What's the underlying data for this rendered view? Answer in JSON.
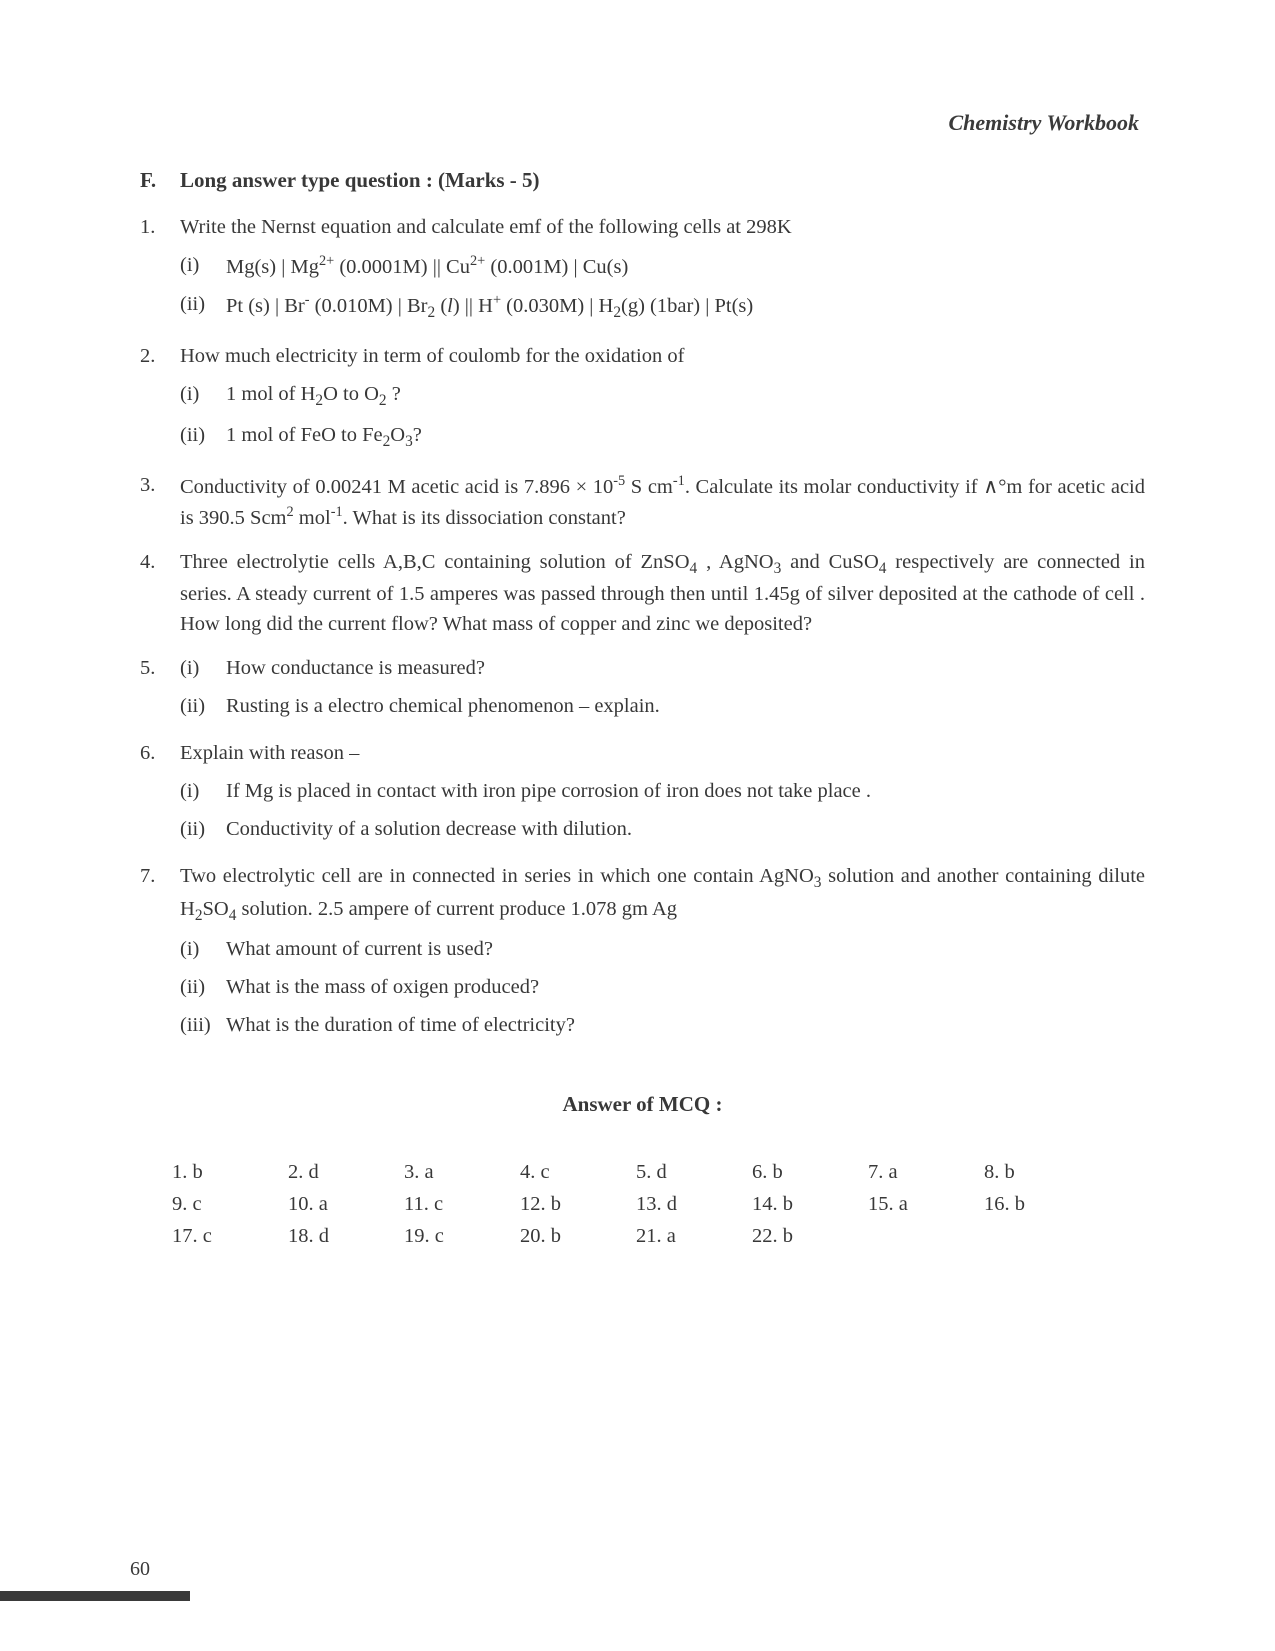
{
  "header": "Chemistry Workbook",
  "section": {
    "label": "F.",
    "title": "Long answer type question : (Marks - 5)"
  },
  "questions": [
    {
      "num": "1.",
      "text": "Write the Nernst equation and calculate emf of the following cells at 298K",
      "subs": [
        {
          "n": "(i)",
          "html": "Mg(s) | Mg<sup>2+</sup> (0.0001M) || Cu<sup>2+</sup> (0.001M) | Cu(s)"
        },
        {
          "n": "(ii)",
          "html": "Pt (s) | Br<sup>-</sup> (0.010M) | Br<sub class='ch'>2</sub> (<span class='it'>l</span>) || H<sup>+</sup> (0.030M) | H<sub class='ch'>2</sub>(g) (1bar) | Pt(s)"
        }
      ]
    },
    {
      "num": "2.",
      "text": "How much electricity in term of coulomb for the oxidation of",
      "subs": [
        {
          "n": "(i)",
          "html": "1 mol of H<sub class='ch'>2</sub>O to O<sub class='ch'>2</sub> ?"
        },
        {
          "n": "(ii)",
          "html": "1 mol of FeO to Fe<sub class='ch'>2</sub>O<sub class='ch'>3</sub>?"
        }
      ]
    },
    {
      "num": "3.",
      "html": "Conductivity of 0.00241 M acetic acid is 7.896 × 10<sup>-5</sup> S cm<sup>-1</sup>. Calculate its molar conductivity if ∧°m for acetic acid is 390.5 Scm<sup>2</sup> mol<sup>-1</sup>. What is its dissociation constant?"
    },
    {
      "num": "4.",
      "html": "Three electrolytie cells A,B,C containing solution of ZnSO<sub class='ch'>4</sub> , AgNO<sub class='ch'>3</sub> and CuSO<sub class='ch'>4</sub> respectively are connected in series. A steady current of 1.5 amperes was passed through then until 1.45g of silver deposited at the cathode of cell . How long did the current flow? What mass of copper and zinc we deposited?"
    },
    {
      "num": "5.",
      "subs_flush": true,
      "subs": [
        {
          "n": "(i)",
          "html": "How conductance is measured?"
        },
        {
          "n": "(ii)",
          "html": "Rusting is a electro chemical phenomenon – explain."
        }
      ]
    },
    {
      "num": "6.",
      "text": "Explain with reason –",
      "subs": [
        {
          "n": "(i)",
          "html": "If Mg is placed in contact with iron pipe corrosion of iron does not take place ."
        },
        {
          "n": "(ii)",
          "html": "Conductivity of a solution decrease with dilution."
        }
      ]
    },
    {
      "num": "7.",
      "html": "Two electrolytic cell are in connected in series in which one contain AgNO<sub class='ch'>3</sub> solution and another containing dilute H<sub class='ch'>2</sub>SO<sub class='ch'>4</sub> solution. 2.5 ampere of current produce 1.078 gm  Ag",
      "subs": [
        {
          "n": "(i)",
          "html": "What amount of current is used?"
        },
        {
          "n": "(ii)",
          "html": "What is the mass of oxigen produced?"
        },
        {
          "n": "(iii)",
          "html": "What is the duration of time of electricity?"
        }
      ]
    }
  ],
  "answers_title": "Answer of  MCQ  :",
  "answers": [
    [
      "1. b",
      "2. d",
      "3. a",
      "4. c",
      "5. d",
      "6. b",
      "7. a",
      "8. b"
    ],
    [
      "9. c",
      "10. a",
      "11. c",
      "12. b",
      "13. d",
      "14. b",
      "15. a",
      "16. b"
    ],
    [
      "17. c",
      "18. d",
      "19. c",
      "20. b",
      "21. a",
      "22. b",
      "",
      ""
    ]
  ],
  "page_number": "60"
}
